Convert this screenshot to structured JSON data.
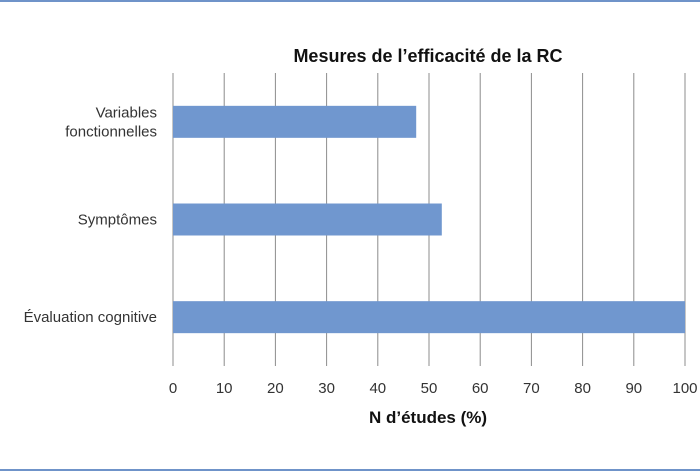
{
  "chart_data": {
    "type": "bar",
    "orientation": "horizontal",
    "title": "Mesures de l’efficacité de la RC",
    "xlabel": "N d’études (%)",
    "ylabel": "",
    "categories": [
      [
        "Variables",
        "fonctionnelles"
      ],
      [
        "Symptômes"
      ],
      [
        "Évaluation cognitive"
      ]
    ],
    "values": [
      47.5,
      52.5,
      100
    ],
    "xlim": [
      0,
      100
    ],
    "xticks": [
      "0",
      "10",
      "20",
      "30",
      "40",
      "50",
      "60",
      "70",
      "80",
      "90",
      "100"
    ],
    "grid": true,
    "legend": "none",
    "bar_color": "#7097cf"
  }
}
